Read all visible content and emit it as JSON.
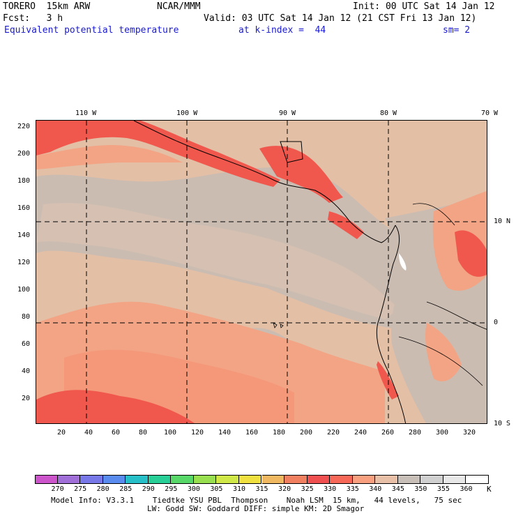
{
  "header": {
    "model": "TORERO  15km ARW",
    "org": "NCAR/MMM",
    "init": "Init: 00 UTC Sat 14 Jan 12",
    "fcst": "Fcst:   3 h",
    "valid": "Valid: 03 UTC Sat 14 Jan 12 (21 CST Fri 13 Jan 12)",
    "field": "Equivalent potential temperature",
    "level": "at k-index =  44",
    "smooth": "sm= 2"
  },
  "map": {
    "lon_labels": [
      "110 W",
      "100 W",
      "90 W",
      "80 W",
      "70 W"
    ],
    "lat_labels": [
      "10 N",
      "0",
      "10 S"
    ],
    "y_ticks": [
      "220",
      "200",
      "180",
      "160",
      "140",
      "120",
      "100",
      "80",
      "60",
      "40",
      "20"
    ],
    "x_ticks": [
      "20",
      "40",
      "60",
      "80",
      "100",
      "120",
      "140",
      "160",
      "180",
      "200",
      "220",
      "240",
      "260",
      "280",
      "300",
      "320"
    ]
  },
  "colorbar": {
    "labels": [
      "270",
      "275",
      "280",
      "285",
      "290",
      "295",
      "300",
      "305",
      "310",
      "315",
      "320",
      "325",
      "330",
      "335",
      "340",
      "345",
      "350",
      "355",
      "360"
    ],
    "unit": "K",
    "colors": [
      "#cc55cc",
      "#a070d8",
      "#7878e8",
      "#5a8cf0",
      "#28c0c8",
      "#28d098",
      "#58d868",
      "#98e050",
      "#d0e848",
      "#f0e040",
      "#f0b860",
      "#f08060",
      "#f05050",
      "#f86858",
      "#f8a080",
      "#e8c0a8",
      "#c8c0b8",
      "#d0d0d0",
      "#e8e8e8",
      "#ffffff"
    ]
  },
  "footer": {
    "line1": "Model Info: V3.3.1    Tiedtke YSU PBL  Thompson    Noah LSM  15 km,   44 levels,   75 sec",
    "line2": "LW: Godd SW: Goddard DIFF: simple KM: 2D Smagor"
  }
}
